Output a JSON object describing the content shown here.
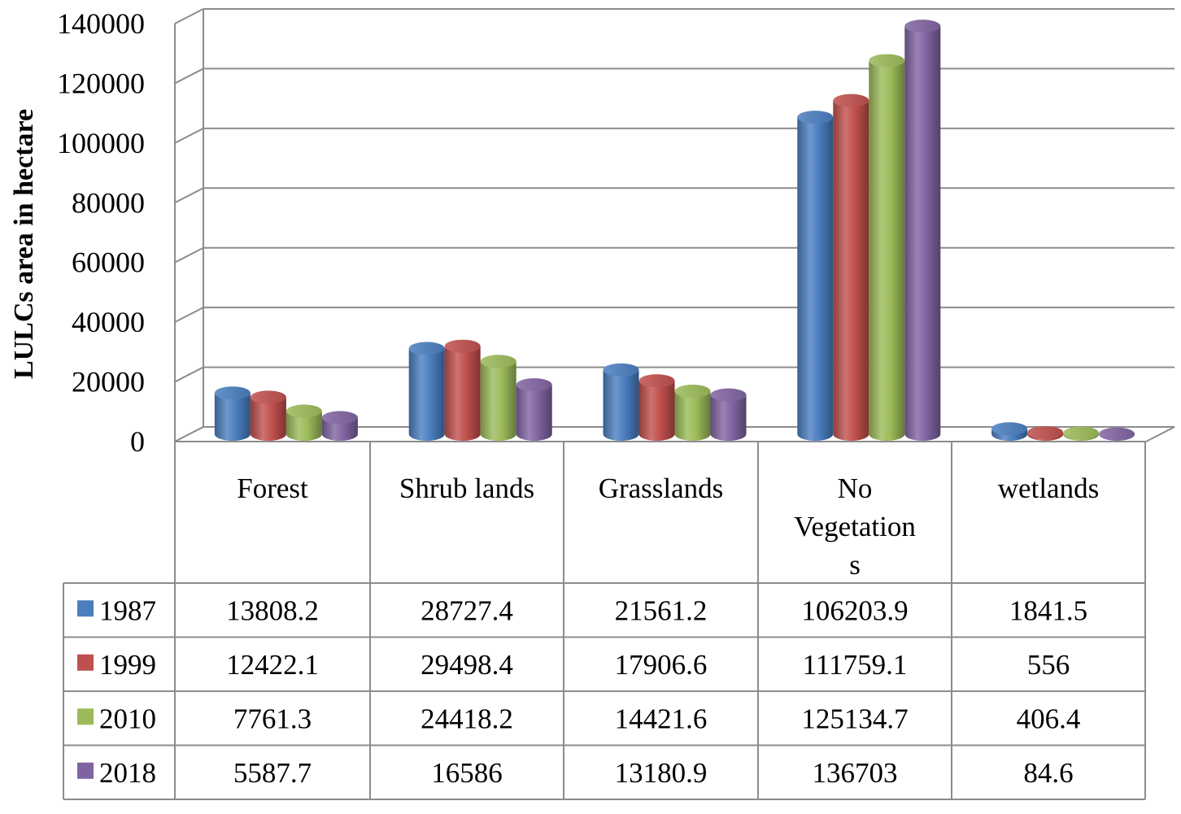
{
  "chart_data": {
    "type": "bar",
    "ylabel": "LULCs area in hectare",
    "xlabel": "",
    "ylim": [
      0,
      140000
    ],
    "ytick_step": 20000,
    "yticks": [
      "0",
      "20000",
      "40000",
      "60000",
      "80000",
      "100000",
      "120000",
      "140000"
    ],
    "grid": true,
    "legend": "data-table-left",
    "categories": [
      "Forest",
      "Shrub lands",
      "Grasslands",
      "No Vegetations",
      "wetlands"
    ],
    "category_display": [
      [
        "Forest"
      ],
      [
        "Shrub lands"
      ],
      [
        "Grasslands"
      ],
      [
        "No",
        "Vegetation",
        "s"
      ],
      [
        "wetlands"
      ]
    ],
    "series": [
      {
        "name": "1987",
        "color": "#4a7ebf",
        "values": [
          13808.2,
          28727.4,
          21561.2,
          106203.9,
          1841.5
        ],
        "labels": [
          "13808.2",
          "28727.4",
          "21561.2",
          "106203.9",
          "1841.5"
        ]
      },
      {
        "name": "1999",
        "color": "#c0504d",
        "values": [
          12422.1,
          29498.4,
          17906.6,
          111759.1,
          556
        ],
        "labels": [
          "12422.1",
          "29498.4",
          "17906.6",
          "111759.1",
          "556"
        ]
      },
      {
        "name": "2010",
        "color": "#9bbb59",
        "values": [
          7761.3,
          24418.2,
          14421.6,
          125134.7,
          406.4
        ],
        "labels": [
          "7761.3",
          "24418.2",
          "14421.6",
          "125134.7",
          "406.4"
        ]
      },
      {
        "name": "2018",
        "color": "#8064a2",
        "values": [
          5587.7,
          16586,
          13180.9,
          136703,
          84.6
        ],
        "labels": [
          "5587.7",
          "16586",
          "13180.9",
          "136703",
          "84.6"
        ]
      }
    ]
  }
}
